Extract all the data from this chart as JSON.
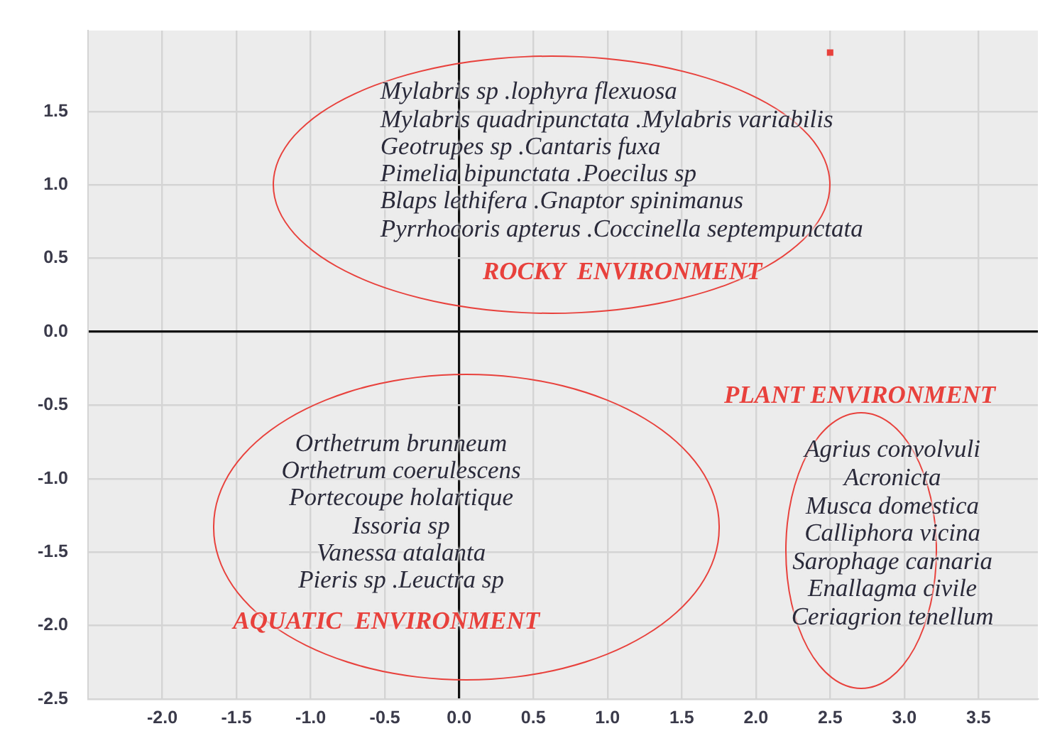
{
  "chart_data": {
    "type": "scatter",
    "series": [
      {
        "color": "#e8413c",
        "x": [
          2.5
        ],
        "values": [
          1.9
        ]
      }
    ],
    "xlim": [
      -2.5,
      3.9
    ],
    "ylim": [
      -2.5,
      2.05
    ],
    "xticks": [
      {
        "value": -2,
        "label": "-2.0"
      },
      -1.5,
      {
        "value": -1,
        "label": "-1.0"
      },
      -0.5,
      {
        "value": 0,
        "label": "0.0"
      },
      0.5,
      {
        "value": 1,
        "label": "1.0"
      },
      1.5,
      {
        "value": 2,
        "label": "2.0"
      },
      2.5,
      {
        "value": 3,
        "label": "3.0"
      },
      3.5
    ],
    "yticks": [
      -2.5,
      {
        "value": -2,
        "label": "-2.0"
      },
      -1.5,
      {
        "value": -1,
        "label": "-1.0"
      },
      -0.5,
      {
        "value": 0,
        "label": "0.0"
      },
      0.5,
      {
        "value": 1,
        "label": "1.0"
      },
      1.5
    ],
    "grid": true,
    "marker": "square",
    "annotations": [
      "Mylabris sp .lophyra flexuosa",
      "Mylabris quadripunctata .Mylabris variabilis",
      "Geotrupes sp .Cantaris fuxa",
      "Pimelia bipunctata .Poecilus sp",
      "Blaps lethifera .Gnaptor spinimanus",
      "Pyrrhocoris apterus .Coccinella septempunctata",
      "ROCKY  ENVIRONMENT",
      "Orthetrum brunneum",
      "Orthetrum coerulescens",
      "Portecoupe holartique",
      "Issoria sp",
      "Vanessa atalanta",
      "Pieris sp .Leuctra sp",
      "AQUATIC  ENVIRONMENT",
      "PLANT ENVIRONMENT",
      "Agrius convolvuli",
      "Acronicta",
      "Musca domestica",
      "Calliphora vicina",
      "Sarophage carnaria",
      "Enallagma civile",
      "Ceriagrion tenellum"
    ]
  }
}
